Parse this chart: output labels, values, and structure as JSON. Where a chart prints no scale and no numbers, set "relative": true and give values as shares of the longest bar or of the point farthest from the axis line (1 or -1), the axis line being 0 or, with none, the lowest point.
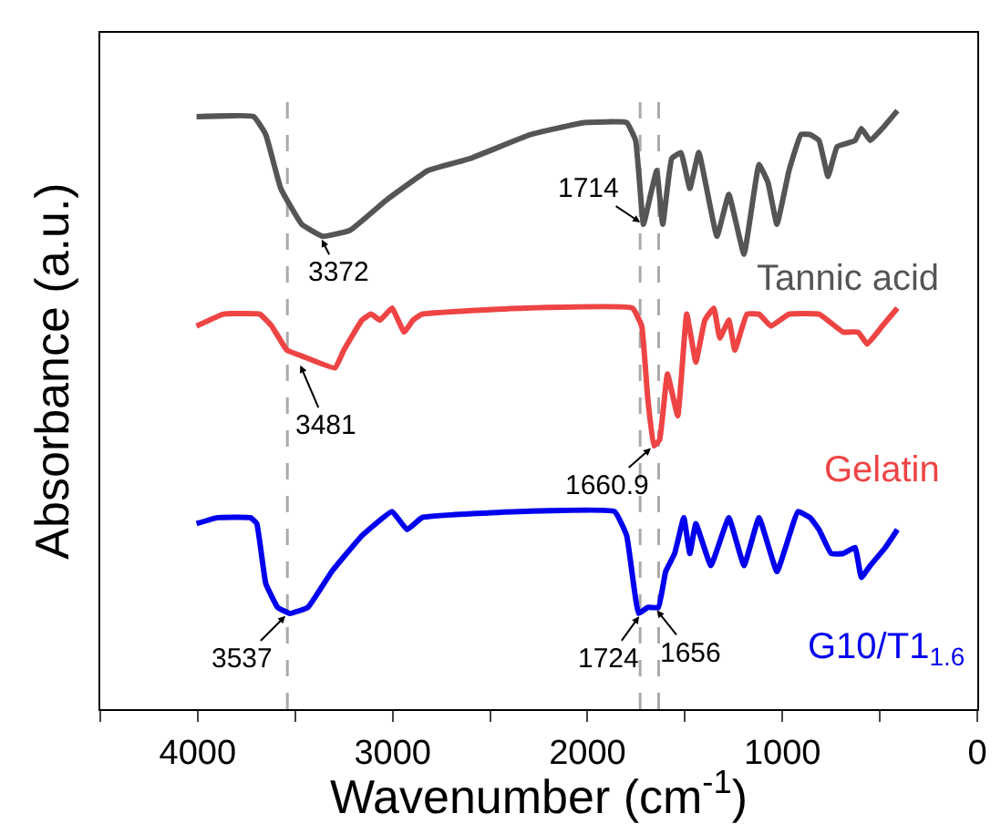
{
  "chart_data": {
    "type": "line",
    "relative": true,
    "xlabel": "Wavenumber (cm$^{-1}$)",
    "ylabel": "Absorbance (a.u.)",
    "xlim": [
      4500,
      0
    ],
    "xticks": [
      {
        "value": 4500,
        "label": null
      },
      4000,
      {
        "value": 3500,
        "label": null
      },
      3000,
      {
        "value": 2500,
        "label": null
      },
      2000,
      {
        "value": 1500,
        "label": null
      },
      1000,
      {
        "value": 500,
        "label": null
      },
      0
    ],
    "tick_labels": "x",
    "grid": false,
    "legend": false,
    "marker": "none",
    "line_style": "solid",
    "series": [
      {
        "name": "Tannic acid",
        "color": "#555555",
        "x": [
          4006,
          3713,
          3651,
          3574,
          3466,
          3358,
          3219,
          3034,
          2818,
          2602,
          2293,
          2016,
          1799,
          1753,
          1713,
          1676,
          1645,
          1614,
          1568,
          1521,
          1475,
          1429,
          1336,
          1275,
          1197,
          1120,
          1074,
          1028,
          966,
          905,
          858,
          812,
          766,
          719,
          627,
          595,
          549,
          488,
          410
        ],
        "values": [
          0.99,
          0.99,
          0.96,
          0.87,
          0.81,
          0.79,
          0.8,
          0.85,
          0.9,
          0.92,
          0.96,
          0.98,
          0.98,
          0.95,
          0.81,
          0.86,
          0.9,
          0.81,
          0.92,
          0.93,
          0.87,
          0.93,
          0.79,
          0.86,
          0.76,
          0.91,
          0.88,
          0.81,
          0.9,
          0.96,
          0.96,
          0.95,
          0.89,
          0.94,
          0.95,
          0.97,
          0.95,
          0.97,
          1
        ]
      },
      {
        "name": "Gelatin",
        "color": "#ee4444",
        "x": [
          4006,
          3867,
          3682,
          3620,
          3543,
          3466,
          3296,
          3250,
          3157,
          3111,
          3065,
          3003,
          2941,
          2895,
          2849,
          2324,
          1769,
          1722,
          1691,
          1660,
          1630,
          1590,
          1537,
          1491,
          1444,
          1398,
          1352,
          1321,
          1275,
          1244,
          1182,
          1120,
          1059,
          966,
          812,
          688,
          611,
          565,
          488,
          410
        ],
        "values": [
          0.64,
          0.66,
          0.66,
          0.64,
          0.6,
          0.59,
          0.57,
          0.6,
          0.65,
          0.66,
          0.65,
          0.67,
          0.63,
          0.65,
          0.66,
          0.67,
          0.67,
          0.64,
          0.52,
          0.44,
          0.45,
          0.56,
          0.49,
          0.66,
          0.58,
          0.65,
          0.67,
          0.62,
          0.65,
          0.6,
          0.66,
          0.66,
          0.64,
          0.66,
          0.66,
          0.63,
          0.63,
          0.61,
          0.64,
          0.67
        ]
      },
      {
        "name": "G10/T1$_{1.6}$",
        "color": "#0000ee",
        "x": [
          4006,
          3898,
          3729,
          3697,
          3651,
          3590,
          3528,
          3435,
          3312,
          3157,
          3003,
          2926,
          2849,
          2355,
          1861,
          1799,
          1738,
          1691,
          1636,
          1599,
          1553,
          1506,
          1475,
          1444,
          1367,
          1275,
          1197,
          1120,
          1028,
          920,
          858,
          812,
          750,
          688,
          627,
          595,
          549,
          472,
          410
        ],
        "values": [
          0.31,
          0.32,
          0.32,
          0.31,
          0.21,
          0.17,
          0.16,
          0.17,
          0.23,
          0.29,
          0.33,
          0.3,
          0.32,
          0.33,
          0.33,
          0.29,
          0.16,
          0.17,
          0.17,
          0.23,
          0.26,
          0.32,
          0.26,
          0.31,
          0.24,
          0.32,
          0.24,
          0.32,
          0.23,
          0.33,
          0.32,
          0.3,
          0.26,
          0.26,
          0.27,
          0.22,
          0.24,
          0.27,
          0.3
        ]
      }
    ],
    "ref_lines": [
      {
        "axis": "x",
        "value": 3540,
        "color": "#aaaaaa",
        "line_style": "dashed"
      },
      {
        "axis": "x",
        "value": 1730,
        "color": "#aaaaaa",
        "line_style": "dashed"
      },
      {
        "axis": "x",
        "value": 1635,
        "color": "#aaaaaa",
        "line_style": "dashed"
      }
    ],
    "annotations": [
      {
        "text": "3372",
        "x": 3372,
        "y": 0.79
      },
      {
        "text": "1714",
        "x": 1714,
        "y": 0.81
      },
      {
        "text": "3481",
        "x": 3481,
        "y": 0.58
      },
      {
        "text": "1660.9",
        "x": 1660.9,
        "y": 0.44
      },
      {
        "text": "3537",
        "x": 3537,
        "y": 0.16
      },
      {
        "text": "1724",
        "x": 1724,
        "y": 0.16
      },
      {
        "text": "1656",
        "x": 1656,
        "y": 0.17
      }
    ]
  }
}
